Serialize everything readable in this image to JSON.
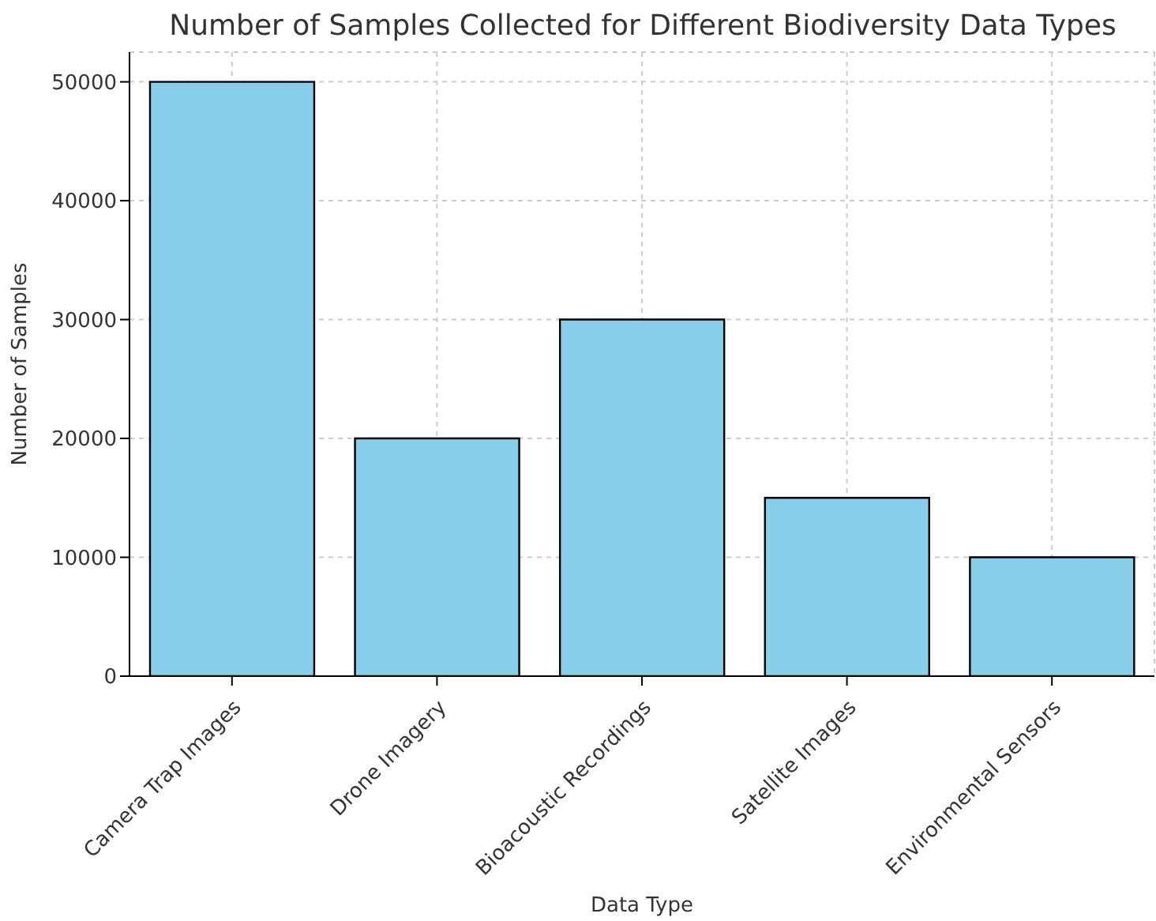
{
  "chart_data": {
    "type": "bar",
    "title": "Number of Samples Collected for Different Biodiversity Data Types",
    "xlabel": "Data Type",
    "ylabel": "Number of Samples",
    "categories": [
      "Camera Trap Images",
      "Drone Imagery",
      "Bioacoustic Recordings",
      "Satellite Images",
      "Environmental Sensors"
    ],
    "values": [
      50000,
      20000,
      30000,
      15000,
      10000
    ],
    "color": "#87ceeb",
    "ylim": [
      0,
      52500
    ],
    "yticks": [
      0,
      10000,
      20000,
      30000,
      40000,
      50000
    ],
    "grid": true
  }
}
